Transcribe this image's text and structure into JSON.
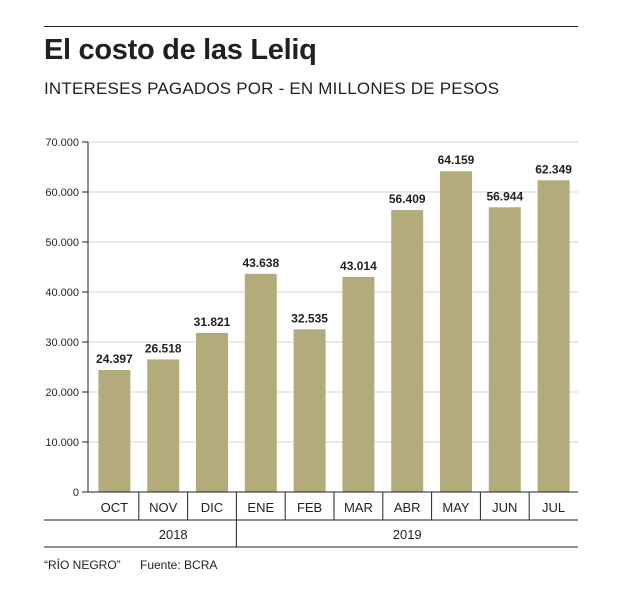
{
  "header": {
    "title": "El costo de las Leliq",
    "subtitle": "INTERESES PAGADOS POR - EN MILLONES DE PESOS"
  },
  "footer": {
    "credit": "“RÍO NEGRO”",
    "source": "Fuente: BCRA"
  },
  "colors": {
    "bar": "#b3ab7c",
    "grid": "#d6d6d6",
    "axis": "#231f20",
    "text": "#231f20"
  },
  "chart_data": {
    "type": "bar",
    "title": "El costo de las Leliq",
    "subtitle": "INTERESES PAGADOS POR - EN MILLONES DE PESOS",
    "categories": [
      "OCT",
      "NOV",
      "DIC",
      "ENE",
      "FEB",
      "MAR",
      "ABR",
      "MAY",
      "JUN",
      "JUL"
    ],
    "values": [
      24397,
      26518,
      31821,
      43638,
      32535,
      43014,
      56409,
      64159,
      56944,
      62349
    ],
    "value_labels": [
      "24.397",
      "26.518",
      "31.821",
      "43.638",
      "32.535",
      "43.014",
      "56.409",
      "64.159",
      "56.944",
      "62.349"
    ],
    "year_groups": [
      {
        "label": "2018",
        "categories": [
          "OCT",
          "NOV",
          "DIC"
        ]
      },
      {
        "label": "2019",
        "categories": [
          "ENE",
          "FEB",
          "MAR",
          "ABR",
          "MAY",
          "JUN",
          "JUL"
        ]
      }
    ],
    "ylim": [
      0,
      70000
    ],
    "yticks": [
      0,
      10000,
      20000,
      30000,
      40000,
      50000,
      60000,
      70000
    ],
    "ytick_labels": [
      "0",
      "10.000",
      "20.000",
      "30.000",
      "40.000",
      "50.000",
      "60.000",
      "70.000"
    ],
    "grid": true,
    "xlabel": "",
    "ylabel": ""
  }
}
